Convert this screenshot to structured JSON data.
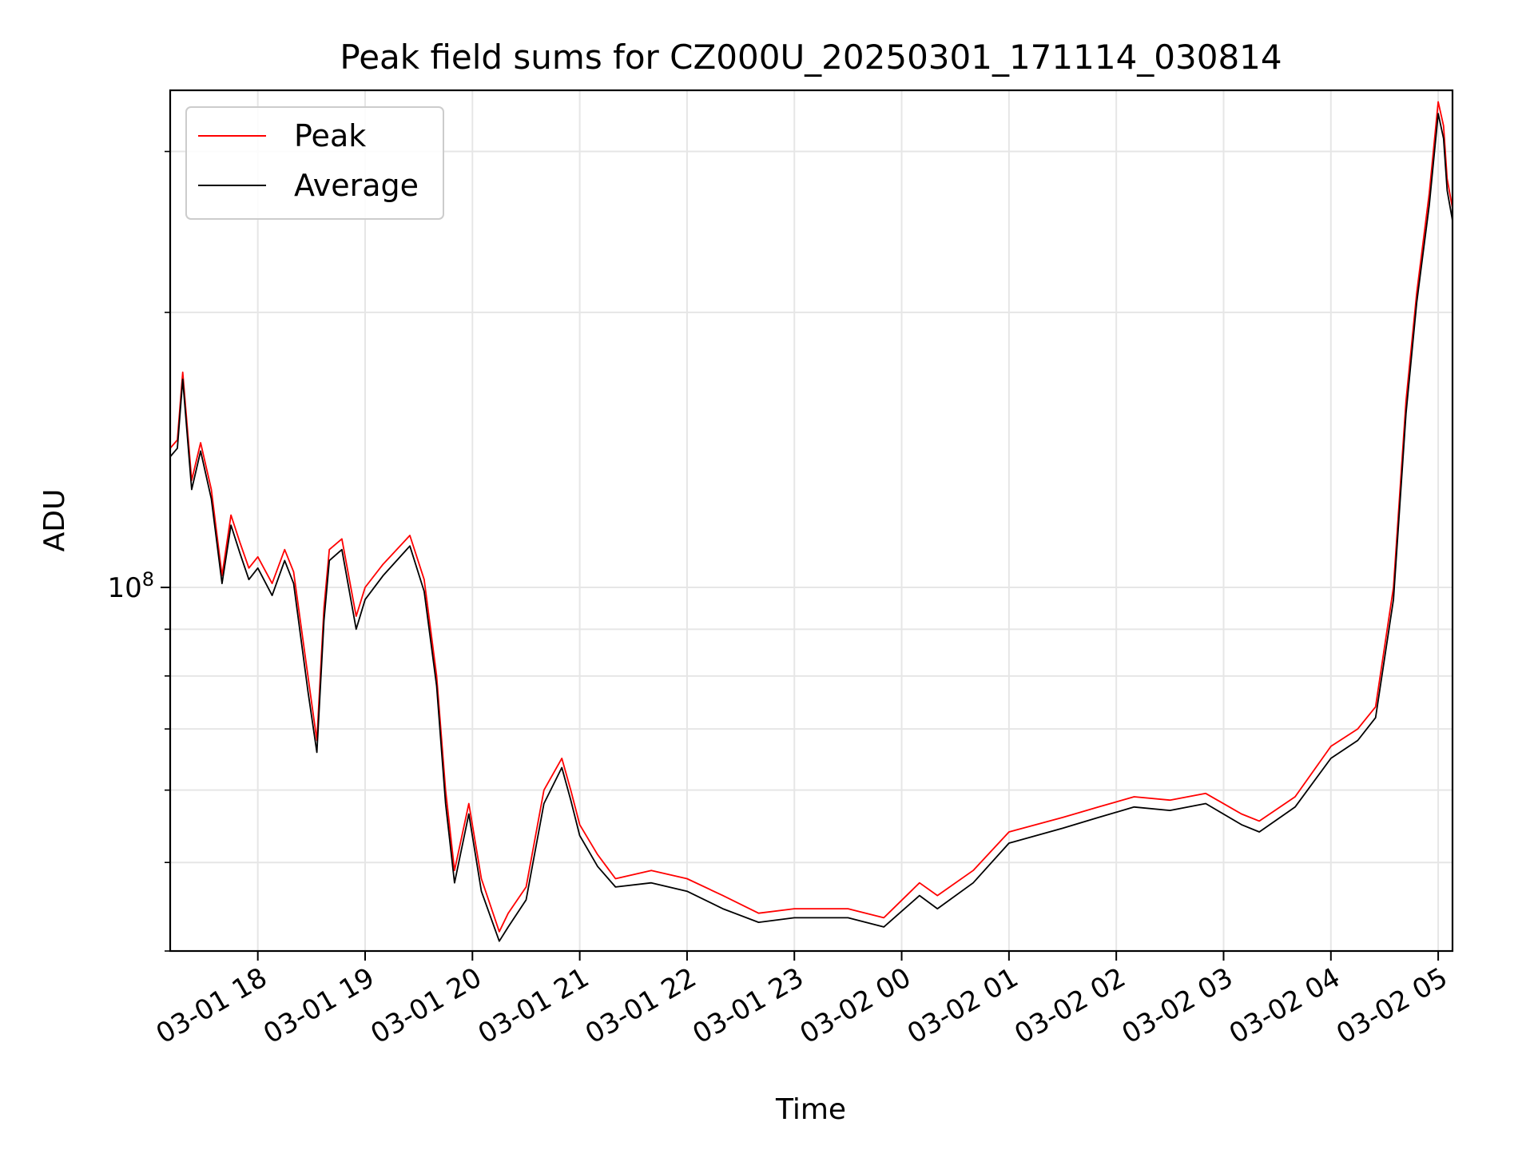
{
  "chart_data": {
    "type": "line",
    "title": "Peak field sums for CZ000U_20250301_171114_030814",
    "xlabel": "Time",
    "ylabel": "ADU",
    "yscale": "log",
    "grid": true,
    "legend_position": "upper-left",
    "x_ticks": [
      "03-01 18",
      "03-01 19",
      "03-01 20",
      "03-01 21",
      "03-01 22",
      "03-01 23",
      "03-02 00",
      "03-02 01",
      "03-02 02",
      "03-02 03",
      "03-02 04",
      "03-02 05"
    ],
    "y_tick_labels": [
      {
        "base": "10",
        "exp": "8"
      }
    ],
    "xlim": [
      "2025-03-01T17:11",
      "2025-03-02T05:08"
    ],
    "ylim": [
      40000000,
      350000000
    ],
    "series_colors": {
      "Peak": "#ff0000",
      "Average": "#000000"
    },
    "x": [
      "2025-03-01T17:11",
      "2025-03-01T17:15",
      "2025-03-01T17:18",
      "2025-03-01T17:23",
      "2025-03-01T17:28",
      "2025-03-01T17:34",
      "2025-03-01T17:40",
      "2025-03-01T17:45",
      "2025-03-01T17:50",
      "2025-03-01T17:55",
      "2025-03-01T18:00",
      "2025-03-01T18:08",
      "2025-03-01T18:15",
      "2025-03-01T18:20",
      "2025-03-01T18:28",
      "2025-03-01T18:33",
      "2025-03-01T18:37",
      "2025-03-01T18:40",
      "2025-03-01T18:47",
      "2025-03-01T18:55",
      "2025-03-01T19:00",
      "2025-03-01T19:10",
      "2025-03-01T19:25",
      "2025-03-01T19:33",
      "2025-03-01T19:40",
      "2025-03-01T19:45",
      "2025-03-01T19:50",
      "2025-03-01T19:58",
      "2025-03-01T20:05",
      "2025-03-01T20:15",
      "2025-03-01T20:20",
      "2025-03-01T20:30",
      "2025-03-01T20:40",
      "2025-03-01T20:50",
      "2025-03-01T20:55",
      "2025-03-01T21:00",
      "2025-03-01T21:10",
      "2025-03-01T21:20",
      "2025-03-01T21:40",
      "2025-03-01T22:00",
      "2025-03-01T22:20",
      "2025-03-01T22:40",
      "2025-03-01T23:00",
      "2025-03-01T23:30",
      "2025-03-01T23:50",
      "2025-03-02T00:10",
      "2025-03-02T00:20",
      "2025-03-02T00:40",
      "2025-03-02T01:00",
      "2025-03-02T01:30",
      "2025-03-02T01:50",
      "2025-03-02T02:10",
      "2025-03-02T02:30",
      "2025-03-02T02:50",
      "2025-03-02T03:10",
      "2025-03-02T03:20",
      "2025-03-02T03:40",
      "2025-03-02T04:00",
      "2025-03-02T04:15",
      "2025-03-02T04:25",
      "2025-03-02T04:35",
      "2025-03-02T04:42",
      "2025-03-02T04:48",
      "2025-03-02T04:55",
      "2025-03-02T05:00",
      "2025-03-02T05:03",
      "2025-03-02T05:05",
      "2025-03-02T05:08"
    ],
    "series": [
      {
        "name": "Peak",
        "values": [
          142000000,
          145000000,
          172000000,
          131000000,
          144000000,
          128000000,
          103000000,
          120000000,
          112000000,
          105000000,
          108000000,
          101000000,
          110000000,
          104000000,
          80000000,
          68000000,
          95000000,
          110000000,
          113000000,
          93000000,
          100000000,
          106000000,
          114000000,
          102000000,
          80000000,
          60000000,
          49000000,
          58000000,
          48000000,
          42000000,
          44000000,
          47000000,
          60000000,
          65000000,
          60000000,
          55000000,
          51000000,
          48000000,
          49000000,
          48000000,
          46000000,
          44000000,
          44500000,
          44500000,
          43500000,
          47500000,
          46000000,
          49000000,
          54000000,
          56000000,
          57500000,
          59000000,
          58500000,
          59500000,
          56500000,
          55500000,
          59000000,
          67000000,
          70000000,
          74000000,
          100000000,
          160000000,
          210000000,
          270000000,
          340000000,
          320000000,
          280000000,
          260000000
        ]
      },
      {
        "name": "Average",
        "values": [
          139000000,
          142000000,
          169000000,
          128000000,
          141000000,
          125000000,
          101000000,
          117000000,
          109000000,
          102000000,
          105000000,
          98000000,
          107000000,
          101000000,
          77000000,
          66000000,
          92000000,
          107000000,
          110000000,
          90000000,
          97000000,
          103000000,
          111000000,
          99000000,
          78000000,
          58000000,
          47500000,
          56500000,
          46500000,
          41000000,
          42500000,
          45500000,
          58000000,
          63500000,
          58500000,
          53500000,
          49500000,
          47000000,
          47500000,
          46500000,
          44500000,
          43000000,
          43500000,
          43500000,
          42500000,
          46000000,
          44500000,
          47500000,
          52500000,
          54500000,
          56000000,
          57500000,
          57000000,
          58000000,
          55000000,
          54000000,
          57500000,
          65000000,
          68000000,
          72000000,
          97000000,
          155000000,
          205000000,
          262000000,
          330000000,
          310000000,
          272000000,
          252000000
        ]
      }
    ]
  },
  "legend": {
    "items": [
      {
        "label": "Peak",
        "color": "#ff0000"
      },
      {
        "label": "Average",
        "color": "#000000"
      }
    ]
  }
}
